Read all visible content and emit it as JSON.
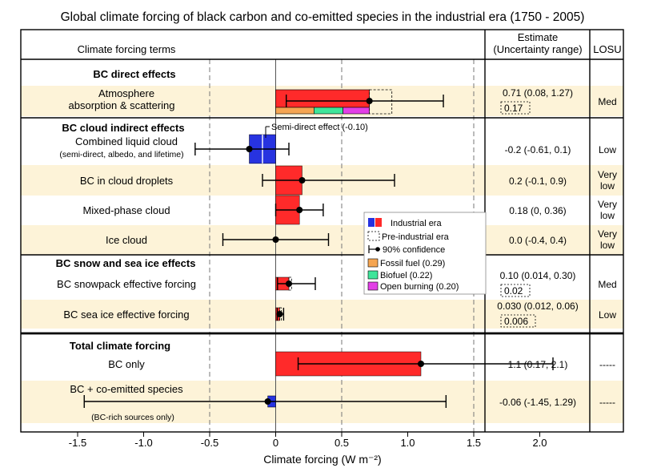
{
  "title": "Global climate forcing of black carbon and co-emitted species in the industrial era (1750 - 2005)",
  "headers": {
    "terms": "Climate forcing terms",
    "estimate_line1": "Estimate",
    "estimate_line2": "(Uncertainty range)",
    "losu": "LOSU"
  },
  "sections": [
    {
      "heading": "BC direct effects"
    },
    {
      "heading": "BC cloud indirect effects"
    },
    {
      "heading": "BC snow and sea ice effects"
    },
    {
      "heading": "Total climate forcing"
    }
  ],
  "legend": {
    "industrial": "Industrial era",
    "preindustrial": "Pre-industrial era",
    "confidence": "90% confidence",
    "fossil": "Fossil fuel (0.29)",
    "biofuel": "Biofuel (0.22)",
    "burning": "Open burning (0.20)"
  },
  "annotation": "Semi-direct effect (-0.10)",
  "colors": {
    "positive": "#ff2a2a",
    "negative": "#2733e0",
    "fossil": "#f5a552",
    "biofuel": "#3fe59a",
    "burning": "#e23fe6",
    "shade": "#fdf3d8"
  },
  "chart_data": {
    "type": "bar",
    "orientation": "horizontal",
    "xlabel": "Climate forcing",
    "xunit": "(W m⁻²)",
    "xlim": [
      -1.5,
      2.0
    ],
    "xticks": [
      -1.5,
      -1.0,
      -0.5,
      0,
      0.5,
      1.0,
      1.5,
      2.0
    ],
    "xtick_labels": [
      "-1.5",
      "-1.0",
      "-0.5",
      "0",
      "0.5",
      "1.0",
      "1.5",
      "2.0"
    ],
    "dashed_gridlines": [
      -0.5,
      0.5,
      1.5
    ],
    "rows": [
      {
        "label": [
          "Atmosphere",
          "absorption & scattering"
        ],
        "value": 0.71,
        "low": 0.08,
        "high": 1.27,
        "preindustrial": 0.17,
        "estimate": "0.71 (0.08, 1.27)",
        "estimate2": "0.17",
        "losu": [
          "Med"
        ],
        "shaded": true,
        "components": [
          {
            "name": "Fossil fuel",
            "value": 0.29
          },
          {
            "name": "Biofuel",
            "value": 0.22
          },
          {
            "name": "Open burning",
            "value": 0.2
          }
        ]
      },
      {
        "label": [
          "Combined liquid cloud",
          "(semi-direct, albedo, and lifetime)"
        ],
        "value": -0.2,
        "low": -0.61,
        "high": 0.1,
        "semi_direct": -0.1,
        "estimate": "-0.2 (-0.61, 0.1)",
        "losu": [
          "Low"
        ],
        "shaded": false
      },
      {
        "label": [
          "BC in cloud droplets"
        ],
        "value": 0.2,
        "low": -0.1,
        "high": 0.9,
        "estimate": "0.2 (-0.1, 0.9)",
        "losu": [
          "Very",
          "low"
        ],
        "shaded": true
      },
      {
        "label": [
          "Mixed-phase cloud"
        ],
        "value": 0.18,
        "low": 0,
        "high": 0.36,
        "estimate": "0.18 (0, 0.36)",
        "losu": [
          "Very",
          "low"
        ],
        "shaded": false
      },
      {
        "label": [
          "Ice cloud"
        ],
        "value": 0.0,
        "low": -0.4,
        "high": 0.4,
        "estimate": "0.0 (-0.4, 0.4)",
        "losu": [
          "Very",
          "low"
        ],
        "shaded": true
      },
      {
        "label": [
          "BC snowpack effective forcing"
        ],
        "value": 0.1,
        "low": 0.014,
        "high": 0.3,
        "preindustrial": 0.02,
        "estimate": "0.10 (0.014, 0.30)",
        "estimate2": "0.02",
        "losu": [
          "Med"
        ],
        "shaded": false
      },
      {
        "label": [
          "BC sea ice effective forcing"
        ],
        "value": 0.03,
        "low": 0.012,
        "high": 0.06,
        "preindustrial": 0.006,
        "estimate": "0.030 (0.012, 0.06)",
        "estimate2": "0.006",
        "losu": [
          "Low"
        ],
        "shaded": true
      },
      {
        "label": [
          "BC only"
        ],
        "value": 1.1,
        "low": 0.17,
        "high": 2.1,
        "estimate": "1.1 (0.17, 2.1)",
        "losu": [
          "-----"
        ],
        "shaded": false
      },
      {
        "label": [
          "BC + co-emitted species",
          "(BC-rich sources only)"
        ],
        "value": -0.06,
        "low": -1.45,
        "high": 1.29,
        "estimate": "-0.06 (-1.45, 1.29)",
        "losu": [
          "-----"
        ],
        "shaded": true
      }
    ]
  }
}
